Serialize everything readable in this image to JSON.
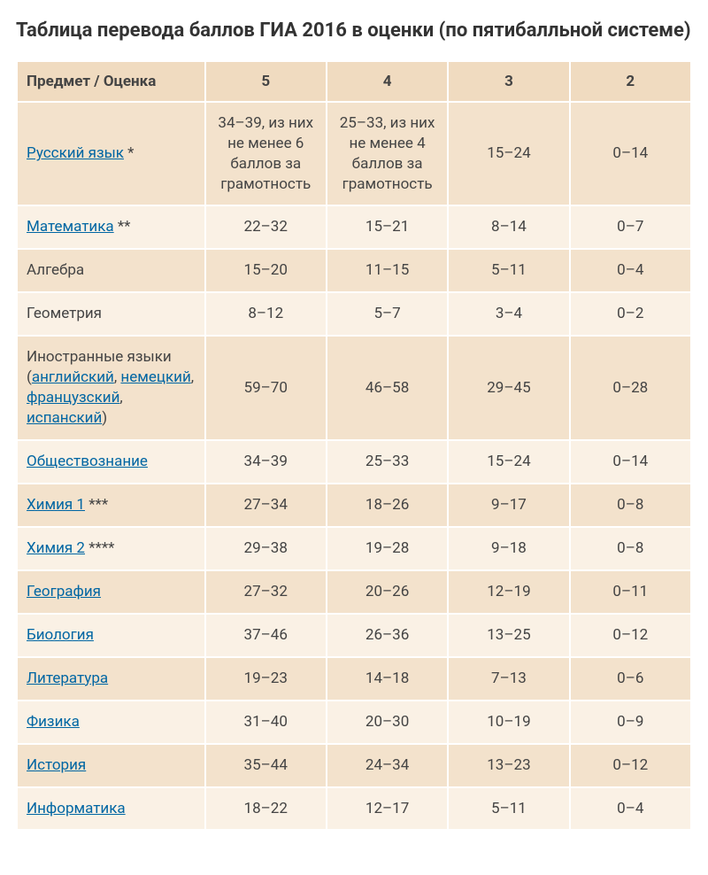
{
  "title": "Таблица перевода баллов ГИА 2016 в оценки (по пятибалльной системе)",
  "colors": {
    "header_bg": "#f0dbc0",
    "row_odd": "#f3e2cc",
    "row_even": "#faf1e5",
    "link": "#0066a3",
    "text": "#444444"
  },
  "columns": [
    "Предмет / Оценка",
    "5",
    "4",
    "3",
    "2"
  ],
  "rows": [
    {
      "subject_parts": [
        {
          "type": "link",
          "text": "Русский язык"
        },
        {
          "type": "text",
          "text": " *"
        }
      ],
      "cells": [
        "34–39, из них не менее 6 баллов за грамотность",
        "25–33, из них не менее 4 баллов за грамотность",
        "15–24",
        "0–14"
      ]
    },
    {
      "subject_parts": [
        {
          "type": "link",
          "text": "Математика"
        },
        {
          "type": "text",
          "text": " **"
        }
      ],
      "cells": [
        "22–32",
        "15–21",
        "8–14",
        "0–7"
      ]
    },
    {
      "subject_parts": [
        {
          "type": "text",
          "text": "Алгебра"
        }
      ],
      "cells": [
        "15–20",
        "11–15",
        "5–11",
        "0–4"
      ]
    },
    {
      "subject_parts": [
        {
          "type": "text",
          "text": "Геометрия"
        }
      ],
      "cells": [
        "8–12",
        "5–7",
        "3–4",
        "0–2"
      ]
    },
    {
      "subject_parts": [
        {
          "type": "text",
          "text": "Иностранные языки ("
        },
        {
          "type": "link",
          "text": "английский"
        },
        {
          "type": "text",
          "text": ", "
        },
        {
          "type": "link",
          "text": "немецкий"
        },
        {
          "type": "text",
          "text": ", "
        },
        {
          "type": "link",
          "text": "французский"
        },
        {
          "type": "text",
          "text": ", "
        },
        {
          "type": "link",
          "text": "испанский"
        },
        {
          "type": "text",
          "text": ")"
        }
      ],
      "cells": [
        "59–70",
        "46–58",
        "29–45",
        "0–28"
      ]
    },
    {
      "subject_parts": [
        {
          "type": "link",
          "text": "Обществознание"
        }
      ],
      "cells": [
        "34–39",
        "25–33",
        "15–24",
        "0–14"
      ]
    },
    {
      "subject_parts": [
        {
          "type": "link",
          "text": "Химия 1"
        },
        {
          "type": "text",
          "text": " ***"
        }
      ],
      "cells": [
        "27–34",
        "18–26",
        "9–17",
        "0–8"
      ]
    },
    {
      "subject_parts": [
        {
          "type": "link",
          "text": "Химия 2"
        },
        {
          "type": "text",
          "text": " ****"
        }
      ],
      "cells": [
        "29–38",
        "19–28",
        "9–18",
        "0–8"
      ]
    },
    {
      "subject_parts": [
        {
          "type": "link",
          "text": "География"
        }
      ],
      "cells": [
        "27–32",
        "20–26",
        "12–19",
        "0–11"
      ]
    },
    {
      "subject_parts": [
        {
          "type": "link",
          "text": "Биология"
        }
      ],
      "cells": [
        "37–46",
        "26–36",
        "13–25",
        "0–12"
      ]
    },
    {
      "subject_parts": [
        {
          "type": "link",
          "text": "Литература"
        }
      ],
      "cells": [
        "19–23",
        "14–18",
        "7–13",
        "0–6"
      ]
    },
    {
      "subject_parts": [
        {
          "type": "link",
          "text": "Физика"
        }
      ],
      "cells": [
        "31–40",
        "20–30",
        "10–19",
        "0–9"
      ]
    },
    {
      "subject_parts": [
        {
          "type": "link",
          "text": "История"
        }
      ],
      "cells": [
        "35–44",
        "24–34",
        "13–23",
        "0–12"
      ]
    },
    {
      "subject_parts": [
        {
          "type": "link",
          "text": "Информатика"
        }
      ],
      "cells": [
        "18–22",
        "12–17",
        "5–11",
        "0–4"
      ]
    }
  ]
}
